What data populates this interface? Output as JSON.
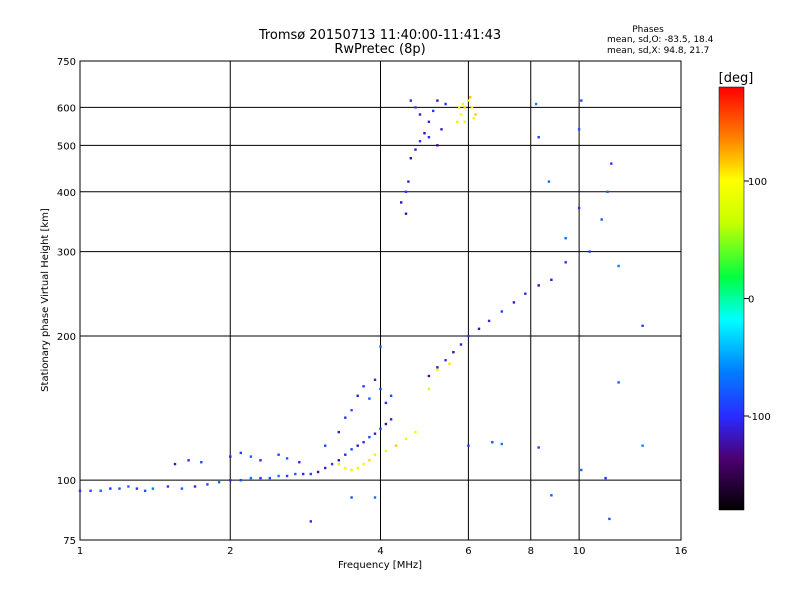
{
  "chart_data": {
    "type": "scatter",
    "title": "Tromsø 20150713 11:40:00-11:41:43",
    "subtitle": "RwPretec (8p)",
    "xlabel": "Frequency [MHz]",
    "ylabel": "Stationary phase Virtual Height [km]",
    "x_scale": "log",
    "y_scale": "log",
    "xlim": [
      1,
      16
    ],
    "ylim": [
      75,
      750
    ],
    "x_ticks": [
      1,
      2,
      4,
      6,
      8,
      10,
      16
    ],
    "y_ticks": [
      75,
      100,
      200,
      300,
      400,
      500,
      600,
      750
    ],
    "grid": true,
    "phase_info": {
      "heading": "Phases",
      "line1": "mean, sd,O: -83.5, 18.4",
      "line2": "mean, sd,X:  94.8, 21.7"
    },
    "colorbar": {
      "label": "[deg]",
      "ticks": [
        "100",
        "0",
        "-100"
      ],
      "tick_values": [
        100,
        0,
        -100
      ],
      "range": [
        -180,
        180
      ]
    },
    "series": [
      {
        "key": "o-trace-low",
        "phase_mean": -85,
        "points": [
          [
            1.0,
            95
          ],
          [
            1.05,
            95
          ],
          [
            1.1,
            95
          ],
          [
            1.15,
            96
          ],
          [
            1.2,
            96
          ],
          [
            1.25,
            97
          ],
          [
            1.3,
            96
          ],
          [
            1.35,
            95
          ],
          [
            1.4,
            96
          ],
          [
            1.5,
            97
          ],
          [
            1.6,
            96
          ],
          [
            1.7,
            97
          ],
          [
            1.8,
            98
          ],
          [
            1.9,
            99
          ],
          [
            2.0,
            100
          ],
          [
            2.1,
            100
          ],
          [
            2.2,
            101
          ],
          [
            2.3,
            101
          ],
          [
            2.4,
            101
          ],
          [
            2.5,
            102
          ],
          [
            2.6,
            102
          ],
          [
            2.7,
            103
          ],
          [
            2.8,
            103
          ],
          [
            2.9,
            103
          ]
        ]
      },
      {
        "key": "o-trace-rise",
        "phase_mean": -105,
        "points": [
          [
            3.0,
            104
          ],
          [
            3.1,
            106
          ],
          [
            3.2,
            108
          ],
          [
            3.3,
            110
          ],
          [
            3.4,
            113
          ],
          [
            3.5,
            116
          ],
          [
            3.6,
            118
          ],
          [
            3.7,
            120
          ],
          [
            3.8,
            123
          ],
          [
            3.9,
            125
          ],
          [
            4.0,
            128
          ],
          [
            4.1,
            131
          ],
          [
            4.2,
            134
          ]
        ]
      },
      {
        "key": "o-trace-upper",
        "phase_mean": -110,
        "points": [
          [
            5.0,
            165
          ],
          [
            5.2,
            172
          ],
          [
            5.4,
            178
          ],
          [
            5.6,
            185
          ],
          [
            5.8,
            192
          ],
          [
            6.0,
            200
          ],
          [
            6.3,
            207
          ],
          [
            6.6,
            215
          ],
          [
            7.0,
            225
          ],
          [
            7.4,
            235
          ],
          [
            7.8,
            245
          ],
          [
            8.3,
            255
          ],
          [
            8.8,
            262
          ],
          [
            9.4,
            285
          ]
        ]
      },
      {
        "key": "o-scatter-mid",
        "phase_mean": -95,
        "points": [
          [
            1.55,
            108
          ],
          [
            1.65,
            110
          ],
          [
            1.75,
            109
          ],
          [
            2.0,
            112
          ],
          [
            2.1,
            114
          ],
          [
            2.2,
            112
          ],
          [
            2.3,
            110
          ],
          [
            2.5,
            113
          ],
          [
            2.6,
            111
          ],
          [
            2.75,
            109
          ],
          [
            3.1,
            118
          ],
          [
            3.3,
            126
          ],
          [
            3.4,
            135
          ],
          [
            3.5,
            140
          ],
          [
            3.6,
            150
          ],
          [
            3.7,
            157
          ],
          [
            3.8,
            148
          ],
          [
            3.9,
            162
          ],
          [
            4.0,
            155
          ],
          [
            4.0,
            190
          ],
          [
            4.1,
            145
          ],
          [
            4.2,
            150
          ]
        ]
      },
      {
        "key": "x-trace",
        "phase_mean": 95,
        "points": [
          [
            3.3,
            108
          ],
          [
            3.4,
            106
          ],
          [
            3.5,
            105
          ],
          [
            3.6,
            106
          ],
          [
            3.7,
            108
          ],
          [
            3.8,
            110
          ],
          [
            3.9,
            113
          ],
          [
            4.1,
            115
          ],
          [
            4.3,
            118
          ],
          [
            4.5,
            122
          ],
          [
            4.7,
            126
          ],
          [
            5.0,
            155
          ],
          [
            5.2,
            170
          ],
          [
            5.5,
            175
          ]
        ]
      },
      {
        "key": "o-cusp",
        "phase_mean": -110,
        "points": [
          [
            4.6,
            470
          ],
          [
            4.7,
            490
          ],
          [
            4.8,
            510
          ],
          [
            4.9,
            530
          ],
          [
            5.0,
            560
          ],
          [
            5.1,
            590
          ],
          [
            5.2,
            620
          ],
          [
            4.6,
            620
          ],
          [
            4.7,
            600
          ],
          [
            4.8,
            580
          ],
          [
            5.0,
            520
          ],
          [
            5.2,
            500
          ],
          [
            5.3,
            540
          ],
          [
            5.4,
            610
          ],
          [
            4.5,
            360
          ],
          [
            4.55,
            420
          ],
          [
            4.5,
            400
          ],
          [
            4.4,
            380
          ]
        ]
      },
      {
        "key": "x-cusp",
        "phase_mean": 100,
        "points": [
          [
            5.7,
            560
          ],
          [
            5.8,
            580
          ],
          [
            5.9,
            600
          ],
          [
            6.0,
            620
          ],
          [
            6.1,
            600
          ],
          [
            6.2,
            580
          ],
          [
            5.9,
            560
          ],
          [
            5.85,
            610
          ],
          [
            6.05,
            630
          ],
          [
            6.15,
            570
          ],
          [
            5.75,
            600
          ]
        ]
      },
      {
        "key": "noise",
        "phase_mean": -80,
        "points": [
          [
            2.9,
            82
          ],
          [
            3.5,
            92
          ],
          [
            3.9,
            92
          ],
          [
            6.0,
            118
          ],
          [
            6.7,
            120
          ],
          [
            7.0,
            119
          ],
          [
            8.3,
            117
          ],
          [
            8.8,
            93
          ],
          [
            8.2,
            610
          ],
          [
            10.1,
            620
          ],
          [
            10.1,
            105
          ],
          [
            11.3,
            101
          ],
          [
            11.5,
            83
          ],
          [
            9.4,
            320
          ],
          [
            10.5,
            300
          ],
          [
            11.1,
            350
          ],
          [
            12.0,
            280
          ],
          [
            13.4,
            210
          ],
          [
            12.0,
            160
          ],
          [
            13.4,
            118
          ],
          [
            8.3,
            520
          ],
          [
            8.7,
            420
          ],
          [
            10.0,
            370
          ],
          [
            10.0,
            540
          ],
          [
            11.4,
            400
          ],
          [
            11.6,
            458
          ]
        ]
      }
    ]
  }
}
